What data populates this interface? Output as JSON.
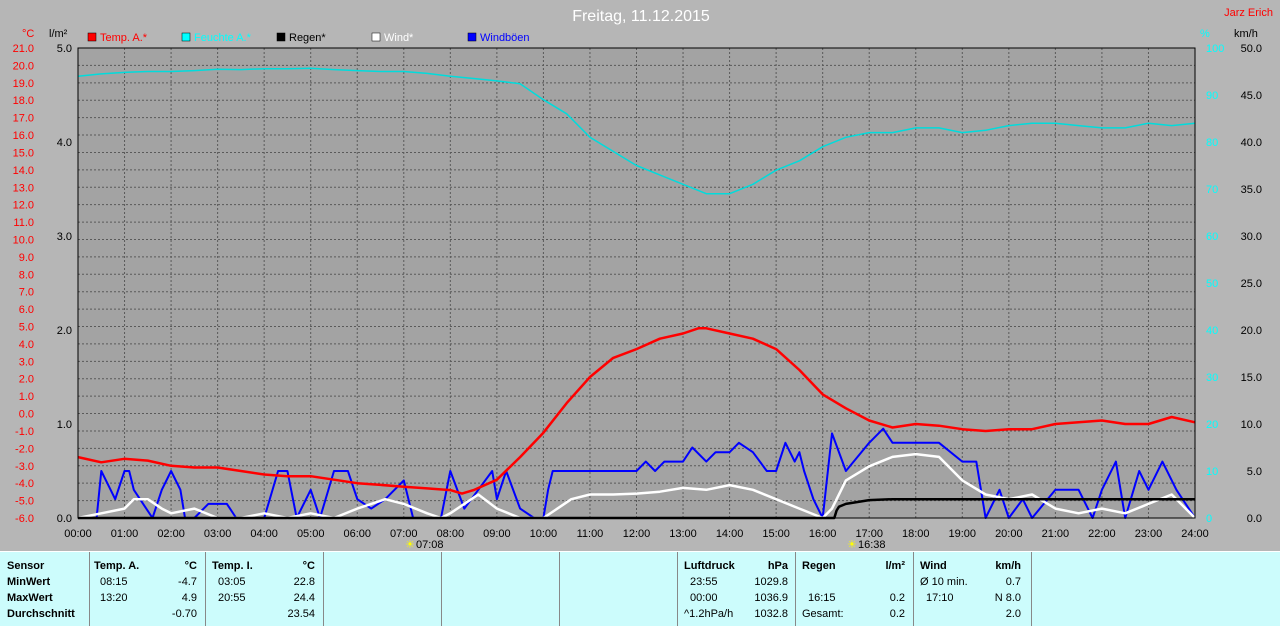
{
  "header": {
    "title": "Freitag, 11.12.2015",
    "author": "Jarz Erich"
  },
  "axes": {
    "temp_unit": "°C",
    "rain_unit": "l/m²",
    "humidity_unit": "%",
    "wind_unit": "km/h"
  },
  "legend": [
    {
      "label": "Temp. A.*",
      "color": "#ff0000"
    },
    {
      "label": "Feuchte A.*",
      "color": "#00ffff"
    },
    {
      "label": "Regen*",
      "color": "#000000"
    },
    {
      "label": "Wind*",
      "color": "#ffffff"
    },
    {
      "label": "Windböen",
      "color": "#0000ff"
    }
  ],
  "sun": {
    "rise": "07:08",
    "set": "16:38"
  },
  "chart_data": {
    "type": "line",
    "title": "Freitag, 11.12.2015",
    "x_ticks": [
      "00:00",
      "01:00",
      "02:00",
      "03:00",
      "04:00",
      "05:00",
      "06:00",
      "07:00",
      "08:00",
      "09:00",
      "10:00",
      "11:00",
      "12:00",
      "13:00",
      "14:00",
      "15:00",
      "16:00",
      "17:00",
      "18:00",
      "19:00",
      "20:00",
      "21:00",
      "22:00",
      "23:00",
      "24:00"
    ],
    "temp_ticks": [
      "21.0",
      "20.0",
      "19.0",
      "18.0",
      "17.0",
      "16.0",
      "15.0",
      "14.0",
      "13.0",
      "12.0",
      "11.0",
      "10.0",
      "9.0",
      "8.0",
      "7.0",
      "6.0",
      "5.0",
      "4.0",
      "3.0",
      "2.0",
      "1.0",
      "0.0",
      "-1.0",
      "-2.0",
      "-3.0",
      "-4.0",
      "-5.0",
      "-6.0"
    ],
    "rain_ticks": [
      "5.0",
      "4.0",
      "3.0",
      "2.0",
      "1.0",
      "0.0"
    ],
    "humidity_ticks": [
      "100",
      "90",
      "80",
      "70",
      "60",
      "50",
      "40",
      "30",
      "20",
      "10",
      "0"
    ],
    "wind_ticks": [
      "50.0",
      "45.0",
      "40.0",
      "35.0",
      "30.0",
      "25.0",
      "20.0",
      "15.0",
      "10.0",
      "5.0",
      "0.0"
    ],
    "ylim_temp": [
      -6,
      21
    ],
    "ylim_rain": [
      0,
      5
    ],
    "ylim_humidity": [
      0,
      100
    ],
    "ylim_wind": [
      0,
      50
    ],
    "xlim_hours": [
      0,
      24
    ],
    "series": [
      {
        "name": "Temp. A.*",
        "axis": "temp",
        "color": "#ff0000",
        "x": [
          0,
          0.5,
          1,
          1.5,
          2,
          2.5,
          3,
          3.5,
          4,
          4.5,
          5,
          5.5,
          6,
          6.5,
          7,
          7.5,
          8,
          8.25,
          8.5,
          9,
          9.5,
          10,
          10.5,
          11,
          11.5,
          12,
          12.5,
          13,
          13.33,
          13.5,
          14,
          14.5,
          15,
          15.5,
          16,
          16.5,
          17,
          17.5,
          18,
          18.5,
          19,
          19.5,
          20,
          20.5,
          21,
          21.5,
          22,
          22.5,
          23,
          23.5,
          24
        ],
        "y": [
          -2.5,
          -2.8,
          -2.6,
          -2.7,
          -3.0,
          -3.1,
          -3.1,
          -3.3,
          -3.5,
          -3.6,
          -3.6,
          -3.8,
          -4.0,
          -4.1,
          -4.2,
          -4.3,
          -4.4,
          -4.6,
          -4.4,
          -3.8,
          -2.5,
          -1.1,
          0.6,
          2.1,
          3.2,
          3.7,
          4.3,
          4.6,
          4.9,
          4.9,
          4.6,
          4.3,
          3.7,
          2.5,
          1.1,
          0.3,
          -0.4,
          -0.8,
          -0.6,
          -0.7,
          -0.9,
          -1.0,
          -0.9,
          -0.9,
          -0.6,
          -0.5,
          -0.4,
          -0.6,
          -0.6,
          -0.2,
          -0.5
        ]
      },
      {
        "name": "Feuchte A.*",
        "axis": "humidity",
        "color": "#00dcdc",
        "x": [
          0,
          0.5,
          1,
          1.5,
          2,
          2.5,
          3,
          3.5,
          4,
          4.5,
          5,
          5.5,
          6,
          6.5,
          7,
          7.5,
          8,
          8.5,
          9,
          9.5,
          10,
          10.5,
          11,
          11.5,
          12,
          12.5,
          13,
          13.5,
          14,
          14.5,
          15,
          15.5,
          16,
          16.5,
          17,
          17.5,
          18,
          18.5,
          19,
          19.5,
          20,
          20.5,
          21,
          21.5,
          22,
          22.5,
          23,
          23.5,
          24
        ],
        "y": [
          94,
          94.5,
          94.8,
          95,
          95,
          95.2,
          95.5,
          95.4,
          95.6,
          95.6,
          95.7,
          95.4,
          95.2,
          95,
          95,
          94.6,
          94,
          93.5,
          93,
          92.4,
          89,
          86,
          81,
          78,
          75,
          73,
          71,
          69,
          69,
          71,
          74,
          76,
          79,
          81,
          82,
          82,
          83,
          83,
          82,
          82.5,
          83.5,
          84,
          84,
          83.5,
          83,
          83,
          84,
          83.5,
          84
        ]
      },
      {
        "name": "Regen*",
        "axis": "rain",
        "color": "#000000",
        "x": [
          0,
          16.25,
          16.3,
          16.35,
          16.5,
          17,
          17.5,
          18,
          24
        ],
        "y": [
          0,
          0,
          0.08,
          0.12,
          0.15,
          0.19,
          0.2,
          0.2,
          0.2
        ]
      },
      {
        "name": "Wind*",
        "axis": "wind",
        "color": "#ffffff",
        "x": [
          0,
          0.5,
          1,
          1.2,
          1.5,
          1.8,
          2,
          2.5,
          3,
          3.5,
          4,
          4.5,
          5,
          5.5,
          6,
          6.3,
          6.6,
          7,
          7.5,
          7.8,
          8,
          8.3,
          8.6,
          9,
          9.5,
          10,
          10.3,
          10.6,
          11,
          11.5,
          12,
          12.5,
          13,
          13.5,
          14,
          14.5,
          15,
          15.5,
          16,
          16.2,
          16.5,
          17,
          17.5,
          18,
          18.5,
          19,
          19.5,
          20,
          20.5,
          21,
          21.5,
          22,
          22.5,
          23,
          23.5,
          24
        ],
        "y": [
          0,
          0.5,
          1,
          2,
          2,
          1,
          0.5,
          1,
          0,
          0,
          0.5,
          0,
          0.5,
          0,
          1,
          1.5,
          2,
          1.5,
          0.5,
          0,
          0.5,
          1.5,
          2.5,
          1,
          0,
          0,
          1,
          2,
          2.5,
          2.5,
          2.6,
          2.8,
          3.2,
          3,
          3.5,
          3,
          2,
          1,
          0,
          1,
          4,
          5.5,
          6.5,
          6.8,
          6.5,
          4,
          2.5,
          2,
          2.5,
          1,
          0.5,
          1,
          0.5,
          1.5,
          2.5,
          0
        ]
      },
      {
        "name": "Windböen",
        "axis": "wind",
        "color": "#0000ff",
        "x": [
          0,
          0.4,
          0.5,
          0.7,
          0.8,
          1,
          1.1,
          1.2,
          1.6,
          1.8,
          2,
          2.2,
          2.3,
          2.5,
          2.8,
          3.2,
          3.4,
          3.6,
          4,
          4.3,
          4.5,
          4.7,
          5,
          5.2,
          5.5,
          5.8,
          6,
          6.3,
          6.6,
          7,
          7.2,
          7.5,
          7.8,
          8,
          8.3,
          8.6,
          8.9,
          9,
          9.2,
          9.5,
          9.8,
          10,
          10.1,
          10.2,
          10.5,
          11,
          11.5,
          12,
          12.2,
          12.4,
          12.6,
          13,
          13.2,
          13.5,
          13.7,
          14,
          14.2,
          14.5,
          14.8,
          15,
          15.2,
          15.4,
          15.5,
          15.6,
          15.8,
          16,
          16.2,
          16.5,
          17,
          17.3,
          17.5,
          17.8,
          18,
          18.5,
          19,
          19.3,
          19.5,
          19.8,
          20,
          20.3,
          20.5,
          21,
          21.5,
          21.8,
          22,
          22.3,
          22.5,
          22.8,
          23,
          23.3,
          23.6,
          24
        ],
        "y": [
          0,
          0,
          5,
          3,
          2,
          5,
          5,
          3,
          0,
          3,
          5,
          3,
          0,
          0,
          1.5,
          1.5,
          0,
          0,
          0,
          5,
          5,
          0,
          3,
          0,
          5,
          5,
          2,
          1,
          2,
          4,
          0,
          0,
          0,
          5,
          1,
          3,
          5,
          2,
          5,
          1,
          0,
          0,
          3,
          5,
          5,
          5,
          5,
          5,
          6,
          5,
          6,
          6,
          7.5,
          6,
          7,
          7,
          8,
          7,
          5,
          5,
          8,
          6,
          7,
          5,
          2,
          0,
          9,
          5,
          8,
          9.5,
          8,
          8,
          8,
          8,
          6,
          6,
          0,
          3,
          0,
          2,
          0,
          3,
          3,
          0,
          3,
          6,
          0,
          5,
          3,
          6,
          3,
          0
        ]
      }
    ]
  },
  "table": {
    "sensor": {
      "header": "Sensor",
      "rows": [
        "MinWert",
        "MaxWert",
        "Durchschnitt"
      ]
    },
    "temp_a": {
      "header": "Temp. A.",
      "unit": "°C",
      "rows": [
        {
          "time": "08:15",
          "value": "-4.7"
        },
        {
          "time": "13:20",
          "value": "4.9"
        },
        {
          "time": "",
          "value": "-0.70"
        }
      ]
    },
    "temp_i": {
      "header": "Temp. I.",
      "unit": "°C",
      "rows": [
        {
          "time": "03:05",
          "value": "22.8"
        },
        {
          "time": "20:55",
          "value": "24.4"
        },
        {
          "time": "",
          "value": "23.54"
        }
      ]
    },
    "luftdruck": {
      "header": "Luftdruck",
      "unit": "hPa",
      "rows": [
        {
          "time": "23:55",
          "value": "1029.8"
        },
        {
          "time": "00:00",
          "value": "1036.9"
        },
        {
          "time": "^1.2hPa/h",
          "value": "1032.8"
        }
      ]
    },
    "regen": {
      "header": "Regen",
      "unit": "l/m²",
      "rows": [
        {
          "time": "",
          "value": ""
        },
        {
          "time": "16:15",
          "value": "0.2"
        },
        {
          "time": "Gesamt:",
          "value": "0.2"
        }
      ]
    },
    "wind": {
      "header": "Wind",
      "unit": "km/h",
      "rows": [
        {
          "time": "Ø 10 min.",
          "value": "0.7"
        },
        {
          "time": "17:10",
          "value": "N 8.0"
        },
        {
          "time": "",
          "value": "2.0"
        }
      ]
    }
  }
}
